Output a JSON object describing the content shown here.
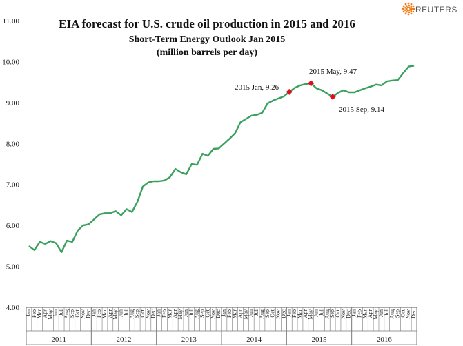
{
  "chart_data": {
    "type": "line",
    "title": "EIA forecast for U.S. crude oil production in 2015 and 2016",
    "subtitle_lines": [
      "Short-Term Energy Outlook Jan 2015",
      "(million barrels per day)"
    ],
    "ylim": [
      4.0,
      11.0
    ],
    "yticks": [
      "4.00",
      "5.00",
      "6.00",
      "7.00",
      "8.00",
      "9.00",
      "10.00",
      "11.00"
    ],
    "months": [
      "Jan",
      "Feb",
      "Mar",
      "Apr",
      "May",
      "Jun",
      "Jul",
      "Aug",
      "Sep",
      "Oct",
      "Nov",
      "Dec"
    ],
    "years": [
      "2011",
      "2012",
      "2013",
      "2014",
      "2015",
      "2016"
    ],
    "series": [
      {
        "name": "U.S. crude oil production",
        "color": "#3aa05e",
        "values": [
          5.5,
          5.4,
          5.6,
          5.55,
          5.62,
          5.57,
          5.35,
          5.63,
          5.6,
          5.88,
          6.0,
          6.03,
          6.15,
          6.27,
          6.3,
          6.3,
          6.35,
          6.25,
          6.4,
          6.33,
          6.58,
          6.95,
          7.05,
          7.08,
          7.08,
          7.1,
          7.18,
          7.38,
          7.3,
          7.25,
          7.5,
          7.48,
          7.75,
          7.7,
          7.87,
          7.88,
          8.0,
          8.12,
          8.25,
          8.52,
          8.6,
          8.68,
          8.7,
          8.75,
          8.98,
          9.05,
          9.1,
          9.15,
          9.26,
          9.36,
          9.42,
          9.45,
          9.47,
          9.35,
          9.3,
          9.22,
          9.14,
          9.24,
          9.3,
          9.25,
          9.25,
          9.3,
          9.35,
          9.39,
          9.44,
          9.42,
          9.52,
          9.54,
          9.55,
          9.72,
          9.88,
          9.9
        ]
      }
    ],
    "highlights": [
      {
        "index": 48,
        "label": "2015 Jan, 9.26"
      },
      {
        "index": 52,
        "label": "2015 May, 9.47"
      },
      {
        "index": 56,
        "label": "2015 Sep, 9.14"
      }
    ],
    "marker_color": "#e0101b"
  },
  "brand": {
    "name": "REUTERS",
    "color": "#f07d1a"
  }
}
